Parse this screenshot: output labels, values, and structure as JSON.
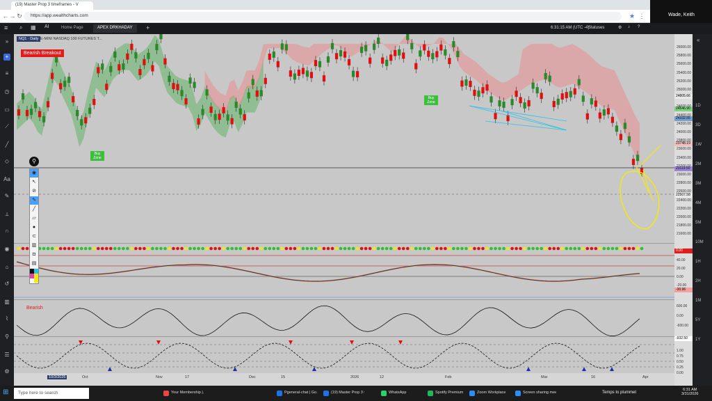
{
  "browser": {
    "tab_title": "(19) Master Prop 3 timeframes - V",
    "url": "https://app.wealthcharts.com",
    "profile_name": "Wade, Keith"
  },
  "app": {
    "tabs": [
      "Home Page",
      "APEX DRKHADAY"
    ],
    "time": "6:31:15 AM",
    "timezone": "(UTC -4)",
    "statuses_label": "Statuses"
  },
  "chart": {
    "symbol_label": "NQ1 · Daily",
    "instrument": "E-MINI NASDAQ 100 FUTURES T...",
    "alert_label": "Bearish Breakout",
    "buy_zone_label": "Buy Zone",
    "bearish_label": "Bearish",
    "price_scale": [
      "26000.00",
      "25800.00",
      "25600.00",
      "25400.00",
      "25200.00",
      "25000.00",
      "24800.00",
      "24600.00",
      "24400.00",
      "24200.00",
      "24000.00",
      "23800.00",
      "23600.00",
      "23400.00",
      "23200.00",
      "23000.00",
      "22800.00",
      "22600.00",
      "22400.00",
      "22200.00",
      "22000.00",
      "21800.00",
      "21600.00"
    ],
    "price_tags": [
      {
        "text": "24805.66",
        "color": "#e9e9e9"
      },
      {
        "text": "24546.90",
        "color": "#7fd27f"
      },
      {
        "text": "24332.55",
        "color": "#7aa0d0"
      },
      {
        "text": "23748.19",
        "color": "#f0c0c0"
      },
      {
        "text": "23119.50",
        "color": "#9b87d6"
      },
      {
        "text": "22507.58",
        "color": "#e9e9e9"
      }
    ],
    "osc1_scale": [
      "40.00",
      "20.00",
      "0.00",
      "-20.00"
    ],
    "osc1_value": "-30.96",
    "osc2_scale": [
      "600.00",
      "0.00",
      "-600.00"
    ],
    "osc2_value": "-932.50",
    "osc3_scale": [
      "1.00",
      "0.75",
      "0.50",
      "0.25",
      "0.00"
    ],
    "dot_value": "0.00",
    "date_axis": [
      "10/3/2025",
      "Oct",
      "Nov",
      "17",
      "Dec",
      "15",
      "2026",
      "12",
      "Feb",
      "Mar",
      "16",
      "Apr"
    ],
    "right_intervals": [
      "1D",
      "3D",
      "1W",
      "2M",
      "3M",
      "4M",
      "5M",
      "10M",
      "1H",
      "2H",
      "1M",
      "5Y",
      "1Y"
    ]
  },
  "chart_data": {
    "type": "candlestick",
    "x_range": [
      "10/3/2025",
      "Apr 2026"
    ],
    "ylim": [
      21500,
      26000
    ]
  },
  "taskbar": {
    "search_placeholder": "Type here to search",
    "apps": [
      "Your Membership |...",
      "Pgeneral-chat | Go...",
      "(19) Master Prop 3 t...",
      "WhatsApp",
      "Spotify Premium",
      "Zoom Workplace",
      "Screen sharing mee..."
    ],
    "weather": "Temps to plummet",
    "clock_time": "6:31 AM",
    "clock_date": "3/31/2026"
  }
}
